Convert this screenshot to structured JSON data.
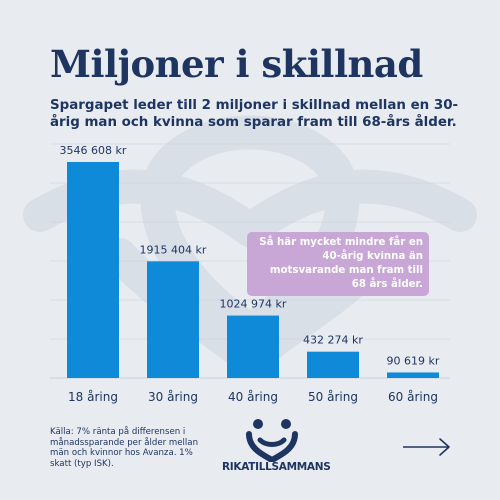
{
  "title": "Miljoner i skillnad",
  "subtitle": "Spargapet leder till 2 miljoner i skillnad mellan en 30-årig man och kvinna som sparar fram till 68-års ålder.",
  "callout": "Så här mycket mindre får en 40-årig kvinna än motsvarande man fram till 68 års ålder.",
  "footnote": "Källa: 7% ränta på differensen i månadssparande per ålder mellan män och kvinnor hos Avanza. 1% skatt (typ ISK).",
  "logo_text": "RIKATILLSAMMANS",
  "colors": {
    "bar": "#0e8ad8",
    "text": "#1f3561",
    "callout": "#c8a6d6",
    "background": "#e8ecf1"
  },
  "chart_data": {
    "type": "bar",
    "categories": [
      "18 åring",
      "30 åring",
      "40 åring",
      "50 åring",
      "60 åring"
    ],
    "values": [
      3546608,
      1915404,
      1024974,
      432274,
      90619
    ],
    "value_labels": [
      "3546 608 kr",
      "1915 404 kr",
      "1024 974 kr",
      "432 274 kr",
      "90 619 kr"
    ],
    "title": "",
    "xlabel": "",
    "ylabel": "",
    "ylim": [
      0,
      3546608
    ],
    "grid": true
  }
}
